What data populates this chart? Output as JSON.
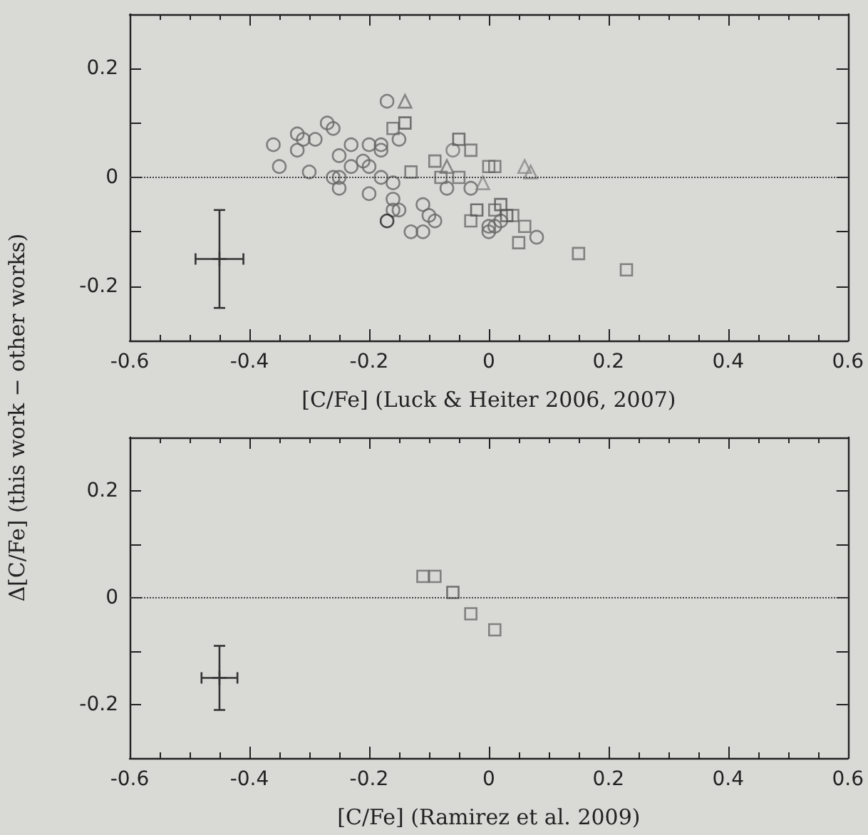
{
  "chart_data": [
    {
      "type": "scatter",
      "xlabel": "[C/Fe] (Luck & Heiter 2006, 2007)",
      "ylabel": "Δ[C/Fe] (this work − other works)",
      "xlim": [
        -0.6,
        0.6
      ],
      "xticks": [
        -0.6,
        -0.4,
        -0.2,
        0,
        0.2,
        0.4,
        0.6
      ],
      "ylim": [
        -0.3,
        0.3
      ],
      "yticks": [
        -0.2,
        0,
        0.2
      ],
      "grid": false,
      "ref_lines": [
        {
          "axis": "y",
          "value": 0,
          "color": "#444444",
          "line_style": "dotted"
        }
      ],
      "series": [
        {
          "color": "#666666",
          "marker": "circle",
          "x": [
            -0.36,
            -0.35,
            -0.32,
            -0.32,
            -0.31,
            -0.29,
            -0.3,
            -0.27,
            -0.26,
            -0.25,
            -0.26,
            -0.25,
            -0.25,
            -0.23,
            -0.23,
            -0.21,
            -0.2,
            -0.2,
            -0.2,
            -0.18,
            -0.18,
            -0.18,
            -0.17,
            -0.16,
            -0.16,
            -0.16,
            -0.15,
            -0.15,
            -0.13,
            -0.11,
            -0.11,
            -0.1,
            -0.09,
            -0.07,
            -0.03,
            0.0,
            0.0,
            0.01,
            0.02,
            0.08
          ],
          "values": [
            0.06,
            0.02,
            0.08,
            0.05,
            0.07,
            0.07,
            0.01,
            0.1,
            0.09,
            0.04,
            0.0,
            0.0,
            -0.02,
            0.06,
            0.02,
            0.03,
            0.06,
            0.02,
            -0.03,
            0.06,
            0.05,
            0.0,
            0.14,
            -0.01,
            -0.04,
            -0.06,
            -0.06,
            0.07,
            -0.1,
            -0.05,
            -0.1,
            -0.07,
            -0.08,
            -0.02,
            -0.02,
            -0.09,
            -0.1,
            -0.09,
            -0.08,
            -0.11
          ]
        },
        {
          "color": "#222222",
          "marker": "circle",
          "x": [
            -0.17
          ],
          "values": [
            -0.08
          ]
        },
        {
          "color": "#777777",
          "marker": "circle",
          "x": [
            -0.06
          ],
          "values": [
            0.05
          ]
        },
        {
          "color": "#6a6a6a",
          "marker": "square",
          "x": [
            -0.16,
            -0.13,
            -0.09,
            -0.08,
            -0.03,
            -0.05,
            0.0,
            0.01,
            -0.03,
            0.01,
            0.04,
            0.06,
            0.05,
            0.15,
            0.23
          ],
          "values": [
            0.09,
            0.01,
            0.03,
            0.0,
            0.05,
            0.0,
            0.02,
            0.02,
            -0.08,
            -0.06,
            -0.07,
            -0.09,
            -0.12,
            -0.14,
            -0.17
          ]
        },
        {
          "color": "#555555",
          "marker": "square",
          "x": [
            -0.14,
            -0.05,
            -0.02,
            0.02,
            0.03
          ],
          "values": [
            0.1,
            0.07,
            -0.06,
            -0.05,
            -0.07
          ]
        },
        {
          "color": "#888888",
          "marker": "triangle",
          "x": [
            -0.01,
            0.06,
            0.07
          ],
          "values": [
            -0.01,
            0.02,
            0.01
          ]
        },
        {
          "color": "#6f6f6f",
          "marker": "triangle",
          "x": [
            -0.14,
            -0.07
          ],
          "values": [
            0.14,
            0.02
          ]
        },
        {
          "color": "#333333",
          "marker": "cross",
          "x": [
            -0.45
          ],
          "values": [
            -0.15
          ],
          "errors": [
            [
              -0.24,
              -0.06
            ]
          ],
          "xerrors": [
            [
              -0.49,
              -0.41
            ]
          ]
        }
      ]
    },
    {
      "type": "scatter",
      "xlabel": "[C/Fe] (Ramirez et al. 2009)",
      "xlim": [
        -0.6,
        0.6
      ],
      "xticks": [
        -0.6,
        -0.4,
        -0.2,
        0,
        0.2,
        0.4,
        0.6
      ],
      "ylim": [
        -0.3,
        0.3
      ],
      "yticks": [
        -0.2,
        0,
        0.2
      ],
      "grid": false,
      "ref_lines": [
        {
          "axis": "y",
          "value": 0,
          "color": "#444444",
          "line_style": "dotted"
        }
      ],
      "series": [
        {
          "color": "#6a6a6a",
          "marker": "square",
          "x": [
            -0.11,
            -0.09,
            -0.03,
            0.01
          ],
          "values": [
            0.04,
            0.04,
            -0.03,
            -0.06
          ]
        },
        {
          "color": "#555555",
          "marker": "square",
          "x": [
            -0.06
          ],
          "values": [
            0.01
          ]
        },
        {
          "color": "#333333",
          "marker": "cross",
          "x": [
            -0.45
          ],
          "values": [
            -0.15
          ],
          "errors": [
            [
              -0.21,
              -0.09
            ]
          ],
          "xerrors": [
            [
              -0.48,
              -0.42
            ]
          ]
        }
      ]
    }
  ]
}
